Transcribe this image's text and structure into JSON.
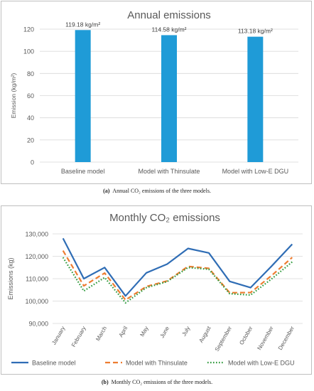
{
  "chart_data": [
    {
      "type": "bar",
      "title": "Annual emissions",
      "ylabel": "Emission (kg/m²)",
      "xlabel": "",
      "categories": [
        "Baseline model",
        "Model with Thinsulate",
        "Model with Low-E DGU"
      ],
      "values": [
        119.18,
        114.58,
        113.18
      ],
      "data_labels": [
        "119.18 kg/m²",
        "114.58 kg/m²",
        "113.18 kg/m²"
      ],
      "ylim": [
        0,
        120
      ],
      "yticks": [
        0,
        20,
        40,
        60,
        80,
        100,
        120
      ],
      "ytick_labels": [
        "0",
        "20",
        "40",
        "60",
        "80",
        "100",
        "120"
      ],
      "grid": true,
      "bar_color": "#1f9bd7"
    },
    {
      "type": "line",
      "title": "Monthly CO₂ emissions",
      "ylabel": "Emissions (kg)",
      "xlabel": "",
      "categories": [
        "January",
        "February",
        "March",
        "April",
        "May",
        "June",
        "July",
        "August",
        "September",
        "October",
        "November",
        "December"
      ],
      "ylim": [
        90000,
        130000
      ],
      "yticks": [
        90000,
        100000,
        110000,
        120000,
        130000
      ],
      "ytick_labels": [
        "90,000",
        "100,000",
        "110,000",
        "120,000",
        "130,000"
      ],
      "grid": true,
      "legend": "bottom",
      "series": [
        {
          "name": "Baseline model",
          "color": "#2f6db5",
          "dash": "solid",
          "values": [
            128000,
            110000,
            115000,
            102300,
            112600,
            116500,
            123500,
            121500,
            108800,
            106000,
            115500,
            125400
          ]
        },
        {
          "name": "Model with Thinsulate",
          "color": "#ed7d31",
          "dash": "dashed",
          "values": [
            122500,
            106800,
            112500,
            100500,
            106500,
            109000,
            115500,
            114600,
            103700,
            103800,
            111300,
            119500
          ]
        },
        {
          "name": "Model with Low-E DGU",
          "color": "#2e9a3c",
          "dash": "dotted",
          "values": [
            119500,
            104500,
            110500,
            99200,
            106000,
            108700,
            115000,
            114200,
            103300,
            102700,
            109800,
            117500
          ]
        }
      ]
    }
  ],
  "captions": {
    "a_tag": "(a)",
    "a_text": "Annual CO₂ emissions of the three models.",
    "b_tag": "(b)",
    "b_text": "Monthly CO₂ emissions of the three models."
  }
}
